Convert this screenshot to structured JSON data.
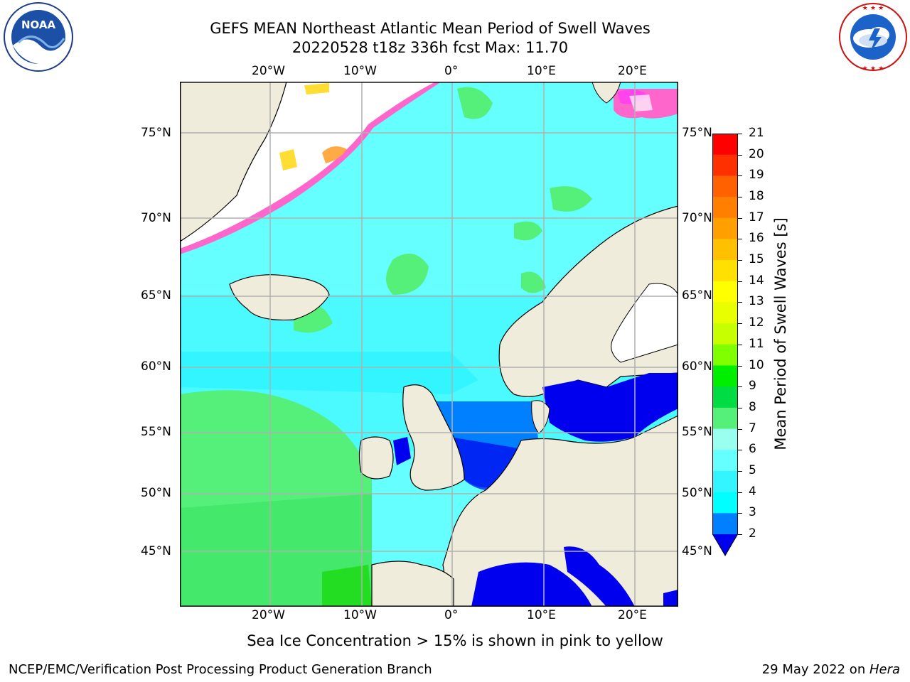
{
  "header": {
    "title_line1": "GEFS MEAN Northeast Atlantic Mean Period of Swell Waves",
    "title_line2": "20220528 t18z 336h fcst   Max: 11.70"
  },
  "logos": {
    "left": {
      "name": "noaa-logo",
      "text": "NOAA",
      "ring_text": "NATIONAL OCEANIC AND ATMOSPHERIC ADMINISTRATION · U.S. DEPARTMENT OF COMMERCE"
    },
    "right": {
      "name": "nws-logo",
      "ring_text": "NATIONAL WEATHER SERVICE"
    }
  },
  "map": {
    "lon_labels": [
      "20°W",
      "10°W",
      "0°",
      "10°E",
      "20°E"
    ],
    "lat_labels": [
      "75°N",
      "70°N",
      "65°N",
      "60°N",
      "55°N",
      "50°N",
      "45°N"
    ],
    "colors": {
      "ocean_light": "#66ffff",
      "ocean_cyan": "#33f5ff",
      "ocean_green": "#55f07a",
      "ocean_blue": "#0080ff",
      "ocean_deep": "#0000ee",
      "land": "#efecdc",
      "ice_pink": "#ff66cc",
      "ice_orange": "#ffaa44",
      "ice_yellow": "#ffdd33",
      "grid": "#b0b0b0"
    }
  },
  "colorbar": {
    "label": "Mean Period of Swell Waves [s]",
    "ticks": [
      "21",
      "20",
      "19",
      "18",
      "17",
      "16",
      "15",
      "14",
      "13",
      "12",
      "11",
      "10",
      "9",
      "8",
      "7",
      "6",
      "5",
      "4",
      "3",
      "2"
    ],
    "colors": [
      "#ff0000",
      "#ff3000",
      "#ff6000",
      "#ff8000",
      "#ffa000",
      "#ffc000",
      "#ffe000",
      "#ffff00",
      "#e8ff00",
      "#c8ff00",
      "#80ff00",
      "#00ee00",
      "#00dd44",
      "#55f07a",
      "#99ffee",
      "#66ffff",
      "#33f5ff",
      "#00ffff",
      "#00d8ff",
      "#0080ff"
    ]
  },
  "footer": {
    "note": "Sea Ice Concentration > 15% is shown in pink to yellow",
    "credit": "NCEP/EMC/Verification Post Processing Product Generation Branch",
    "date": "29 May 2022 on ",
    "machine": "Hera"
  }
}
